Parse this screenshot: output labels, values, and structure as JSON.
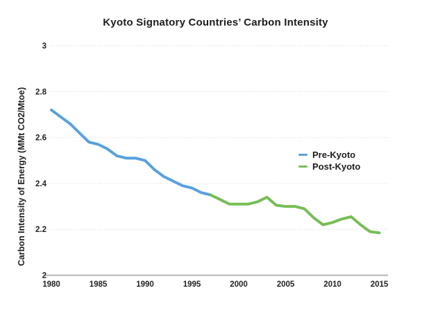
{
  "chart_data": {
    "type": "line",
    "title": "Kyoto Signatory Countries’ Carbon Intensity",
    "ylabel": "Carbon Intensity of Energy (MMt CO2/Mtoe)",
    "xlabel": "",
    "xlim": [
      1980,
      2015
    ],
    "ylim": [
      2,
      3
    ],
    "x_ticks": [
      1980,
      1985,
      1990,
      1995,
      2000,
      2005,
      2010,
      2015
    ],
    "y_ticks": [
      3,
      2.8,
      2.6,
      2.4,
      2.2,
      2
    ],
    "grid": "horizontal dotted gridlines, solid bottom axis only",
    "legend_position": "center-right",
    "axis_color": "#b3b3b3",
    "gridline_color": "#d8d8d8",
    "series": [
      {
        "name": "Pre-Kyoto",
        "color": "#58A0DF",
        "x": [
          1980,
          1981,
          1982,
          1983,
          1984,
          1985,
          1986,
          1987,
          1988,
          1989,
          1990,
          1991,
          1992,
          1993,
          1994,
          1995,
          1996,
          1997
        ],
        "values": [
          2.72,
          2.69,
          2.66,
          2.62,
          2.58,
          2.57,
          2.55,
          2.52,
          2.51,
          2.51,
          2.5,
          2.46,
          2.43,
          2.41,
          2.39,
          2.38,
          2.36,
          2.35
        ]
      },
      {
        "name": "Post-Kyoto",
        "color": "#77BD55",
        "x": [
          1997,
          1998,
          1999,
          2000,
          2001,
          2002,
          2003,
          2004,
          2005,
          2006,
          2007,
          2008,
          2009,
          2010,
          2011,
          2012,
          2013,
          2014,
          2015
        ],
        "values": [
          2.35,
          2.33,
          2.31,
          2.31,
          2.31,
          2.32,
          2.34,
          2.305,
          2.3,
          2.3,
          2.29,
          2.25,
          2.22,
          2.23,
          2.245,
          2.255,
          2.22,
          2.19,
          2.185
        ]
      }
    ]
  }
}
